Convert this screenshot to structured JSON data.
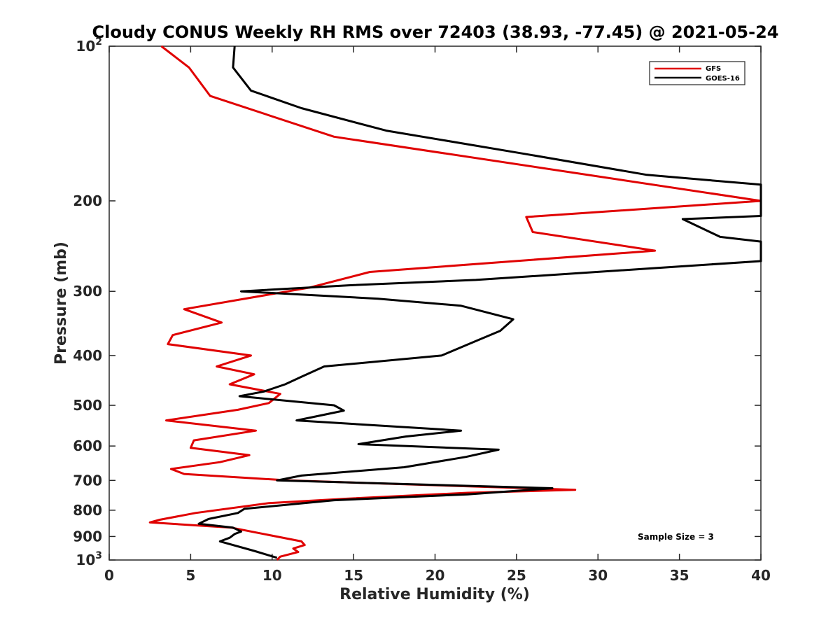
{
  "chart_data": {
    "type": "line",
    "title": "Cloudy CONUS Weekly RH RMS over 72403 (38.93, -77.45) @ 2021-05-24",
    "xlabel": "Relative Humidity (%)",
    "ylabel": "Pressure (mb)",
    "xlim": [
      0,
      40
    ],
    "ylim": [
      100,
      1000
    ],
    "y_scale": "log",
    "y_reversed": true,
    "grid": false,
    "legend_position": "top-right",
    "annotation": "Sample Size = 3",
    "x_ticks": [
      0,
      5,
      10,
      15,
      20,
      25,
      30,
      35,
      40
    ],
    "y_ticks": [
      {
        "value": 100,
        "base": "10",
        "exp": "2"
      },
      {
        "value": 200,
        "label": "200"
      },
      {
        "value": 300,
        "label": "300"
      },
      {
        "value": 400,
        "label": "400"
      },
      {
        "value": 500,
        "label": "500"
      },
      {
        "value": 600,
        "label": "600"
      },
      {
        "value": 700,
        "label": "700"
      },
      {
        "value": 800,
        "label": "800"
      },
      {
        "value": 900,
        "label": "900"
      },
      {
        "value": 1000,
        "base": "10",
        "exp": "3"
      }
    ],
    "series": [
      {
        "name": "GFS",
        "color": "#e00000",
        "points": [
          [
            3.2,
            100
          ],
          [
            4.9,
            110
          ],
          [
            6.2,
            125
          ],
          [
            13.8,
            150
          ],
          [
            40,
            200
          ],
          [
            25.6,
            215
          ],
          [
            26.0,
            230
          ],
          [
            33.5,
            250
          ],
          [
            16.0,
            275
          ],
          [
            12.3,
            295
          ],
          [
            4.6,
            325
          ],
          [
            6.9,
            345
          ],
          [
            3.9,
            365
          ],
          [
            3.6,
            380
          ],
          [
            8.7,
            400
          ],
          [
            6.6,
            420
          ],
          [
            8.9,
            435
          ],
          [
            7.4,
            455
          ],
          [
            10.5,
            475
          ],
          [
            9.8,
            495
          ],
          [
            7.9,
            510
          ],
          [
            3.5,
            535
          ],
          [
            9.0,
            560
          ],
          [
            5.2,
            585
          ],
          [
            5.0,
            605
          ],
          [
            8.6,
            625
          ],
          [
            6.8,
            645
          ],
          [
            3.8,
            665
          ],
          [
            4.6,
            680
          ],
          [
            11.0,
            700
          ],
          [
            28.6,
            730
          ],
          [
            22.0,
            740
          ],
          [
            14.5,
            760
          ],
          [
            9.8,
            775
          ],
          [
            5.3,
            810
          ],
          [
            3.1,
            835
          ],
          [
            2.5,
            845
          ],
          [
            7.5,
            865
          ],
          [
            11.8,
            920
          ],
          [
            12.0,
            935
          ],
          [
            11.3,
            950
          ],
          [
            11.6,
            965
          ],
          [
            10.5,
            985
          ],
          [
            10.3,
            1000
          ]
        ]
      },
      {
        "name": "GOES-16",
        "color": "#000000",
        "points": [
          [
            7.7,
            100
          ],
          [
            7.6,
            110
          ],
          [
            8.7,
            122
          ],
          [
            11.8,
            132
          ],
          [
            17.0,
            146
          ],
          [
            25.5,
            162
          ],
          [
            33.0,
            178
          ],
          [
            40,
            186
          ],
          [
            40,
            214
          ],
          [
            35.2,
            217
          ],
          [
            37.5,
            235
          ],
          [
            40,
            240
          ],
          [
            40,
            262
          ],
          [
            22.5,
            285
          ],
          [
            14.7,
            292
          ],
          [
            8.1,
            300
          ],
          [
            16.5,
            310
          ],
          [
            21.6,
            320
          ],
          [
            24.8,
            340
          ],
          [
            24.0,
            358
          ],
          [
            22.5,
            375
          ],
          [
            20.4,
            400
          ],
          [
            13.2,
            420
          ],
          [
            11.8,
            440
          ],
          [
            10.8,
            455
          ],
          [
            9.5,
            470
          ],
          [
            8.0,
            480
          ],
          [
            13.8,
            500
          ],
          [
            14.4,
            512
          ],
          [
            11.5,
            535
          ],
          [
            21.6,
            560
          ],
          [
            18.2,
            575
          ],
          [
            15.3,
            595
          ],
          [
            23.9,
            610
          ],
          [
            21.9,
            630
          ],
          [
            18.1,
            660
          ],
          [
            11.8,
            685
          ],
          [
            10.3,
            700
          ],
          [
            27.2,
            725
          ],
          [
            22.0,
            745
          ],
          [
            13.8,
            765
          ],
          [
            8.3,
            795
          ],
          [
            7.9,
            810
          ],
          [
            6.1,
            832
          ],
          [
            5.5,
            850
          ],
          [
            7.6,
            865
          ],
          [
            8.1,
            880
          ],
          [
            7.7,
            890
          ],
          [
            7.4,
            905
          ],
          [
            6.8,
            920
          ],
          [
            8.9,
            960
          ],
          [
            10.3,
            990
          ]
        ]
      }
    ]
  }
}
